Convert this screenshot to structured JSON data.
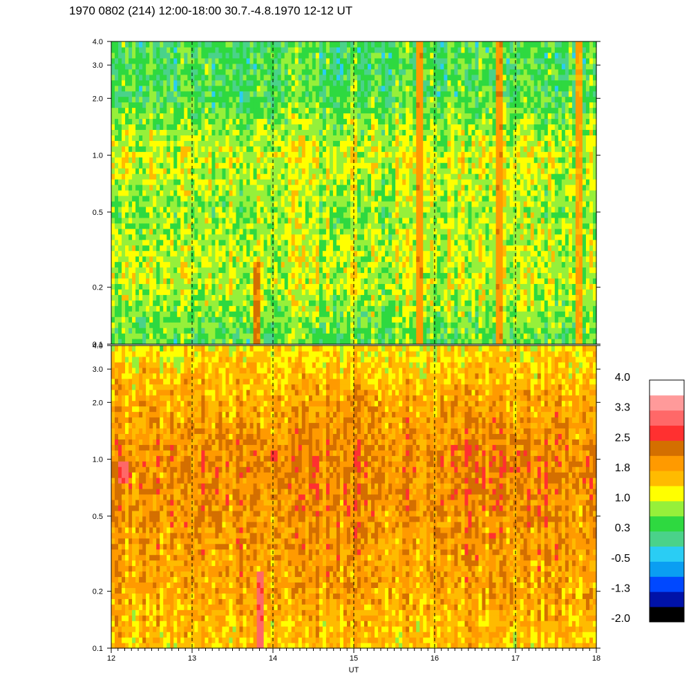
{
  "header": {
    "title": "1970 0802 (214) 12:00-18:00 30.7.-4.8.1970  12-12 UT"
  },
  "chart_data": {
    "type": "heatmap",
    "title": "1970 0802 (214) 12:00-18:00 30.7.-4.8.1970  12-12 UT",
    "xlabel": "UT",
    "ylabel": "",
    "x_range": [
      12,
      18
    ],
    "x_ticks": [
      "12",
      "13",
      "14",
      "15",
      "16",
      "17",
      "18"
    ],
    "y_scale": "log",
    "y_range": [
      0.1,
      4.0
    ],
    "y_ticks": [
      {
        "value": 0.1,
        "label": "0.1"
      },
      {
        "value": 0.2,
        "label": "0.2"
      },
      {
        "value": 0.5,
        "label": "0.5"
      },
      {
        "value": 1.0,
        "label": "1.0"
      },
      {
        "value": 2.0,
        "label": "2.0"
      },
      {
        "value": 3.0,
        "label": "3.0"
      },
      {
        "value": 4.0,
        "label": "4.0"
      }
    ],
    "dashed_verticals": [
      13,
      14,
      15,
      16,
      17
    ],
    "panels": [
      {
        "name": "",
        "base_level": 1.0,
        "profile": [
          {
            "f": 0.1,
            "v": 0.5
          },
          {
            "f": 0.2,
            "v": 1.0
          },
          {
            "f": 0.3,
            "v": 1.0
          },
          {
            "f": 0.5,
            "v": 0.8
          },
          {
            "f": 1.0,
            "v": 1.1
          },
          {
            "f": 2.0,
            "v": 0.5
          },
          {
            "f": 4.0,
            "v": 0.4
          }
        ],
        "features": [
          {
            "t": 13.8,
            "f_min": 0.1,
            "f_max": 0.28,
            "v": 2.2
          },
          {
            "t": 15.8,
            "f_min": 0.1,
            "f_max": 4.0,
            "v": 2.0
          },
          {
            "t": 16.8,
            "f_min": 0.1,
            "f_max": 4.0,
            "v": 2.0
          },
          {
            "t": 17.8,
            "f_min": 0.1,
            "f_max": 4.0,
            "v": 1.8
          }
        ]
      },
      {
        "name": "",
        "base_level": 1.8,
        "profile": [
          {
            "f": 0.1,
            "v": 1.5
          },
          {
            "f": 0.2,
            "v": 1.8
          },
          {
            "f": 0.5,
            "v": 2.0
          },
          {
            "f": 1.0,
            "v": 2.1
          },
          {
            "f": 2.0,
            "v": 1.8
          },
          {
            "f": 4.0,
            "v": 1.3
          }
        ],
        "features": [
          {
            "t": 12.15,
            "f_min": 0.75,
            "f_max": 0.95,
            "v": 2.9
          },
          {
            "t": 13.85,
            "f_min": 0.1,
            "f_max": 0.25,
            "v": 3.0
          },
          {
            "t": 14.0,
            "f_min": 0.95,
            "f_max": 1.1,
            "v": 2.8
          }
        ]
      }
    ],
    "colorbar": {
      "tick_labels": [
        "4.0",
        "3.3",
        "2.5",
        "1.8",
        "1.0",
        "0.3",
        "-0.5",
        "-1.3",
        "-2.0"
      ],
      "range": [
        -2.0,
        4.0
      ],
      "colors": [
        "#000000",
        "#0012a8",
        "#0048ff",
        "#0a9ef2",
        "#2acdf4",
        "#4ad28a",
        "#2ed940",
        "#96f03a",
        "#ffff00",
        "#ffbb00",
        "#ff9a00",
        "#d46f00",
        "#ff3030",
        "#ff6868",
        "#ff9a9a",
        "#ffffff"
      ]
    }
  }
}
